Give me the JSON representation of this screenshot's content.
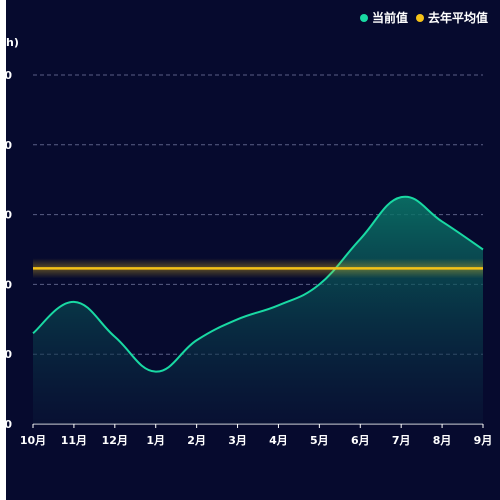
{
  "chart_data": {
    "type": "area",
    "ylabel": "h)",
    "categories": [
      "10月",
      "11月",
      "12月",
      "1月",
      "2月",
      "3月",
      "4月",
      "5月",
      "6月",
      "7月",
      "8月",
      "9月"
    ],
    "ylim": [
      0,
      500
    ],
    "yticks": [
      0,
      100,
      200,
      300,
      400,
      500
    ],
    "ytick_labels": [
      "0",
      "0",
      "0",
      "0",
      "0",
      "0"
    ],
    "grid": true,
    "legend_position": "top-right",
    "series": [
      {
        "name": "当前值",
        "color": "#19d9a3",
        "values": [
          130,
          175,
          125,
          75,
          120,
          150,
          170,
          200,
          265,
          325,
          290,
          250
        ]
      },
      {
        "name": "去年平均值",
        "color": "#f5c218",
        "values": [
          223,
          223,
          223,
          223,
          223,
          223,
          223,
          223,
          223,
          223,
          223,
          223
        ]
      }
    ]
  }
}
